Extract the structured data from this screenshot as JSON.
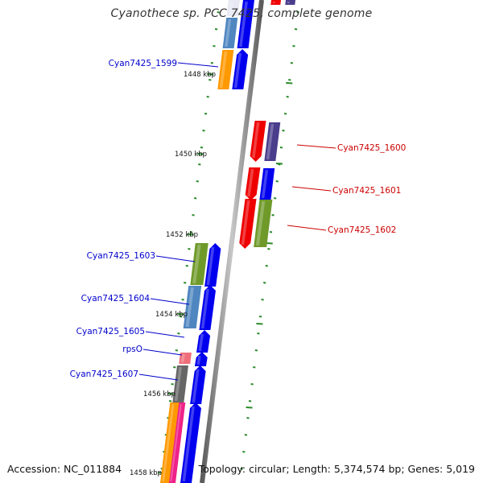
{
  "title": "Cyanothece sp. PCC 7425, complete genome",
  "footer": {
    "accession": "Accession: NC_011884",
    "summary": "Topology: circular; Length: 5,374,574 bp; Genes: 5,019"
  },
  "scale_labels": [
    "1448 kbp",
    "1450 kbp",
    "1452 kbp",
    "1454 kbp",
    "1456 kbp",
    "1458 kbp"
  ],
  "colors": {
    "backbone": "#8a8a8a",
    "tick": "#2a8a2a",
    "label_left": "#0000cc",
    "label_right": "#cc0000",
    "cds_forward": "#0000ee",
    "cds_reverse": "#ee0000",
    "cog_steelblue": "#4f86c0",
    "cog_orange": "#ff9900",
    "cog_olive": "#6f9a2a",
    "cog_purple": "#4a3d8c",
    "cog_grey": "#666666",
    "cog_pink": "#ee2288",
    "cog_salmon": "#ee6f7a"
  },
  "genes": [
    {
      "name": "Cyan7425_1599",
      "side": "left"
    },
    {
      "name": "Cyan7425_1600",
      "side": "right"
    },
    {
      "name": "Cyan7425_1601",
      "side": "right"
    },
    {
      "name": "Cyan7425_1602",
      "side": "right"
    },
    {
      "name": "Cyan7425_1603",
      "side": "left"
    },
    {
      "name": "Cyan7425_1604",
      "side": "left"
    },
    {
      "name": "Cyan7425_1605",
      "side": "left"
    },
    {
      "name": "rpsO",
      "side": "left"
    },
    {
      "name": "Cyan7425_1607",
      "side": "left"
    }
  ]
}
